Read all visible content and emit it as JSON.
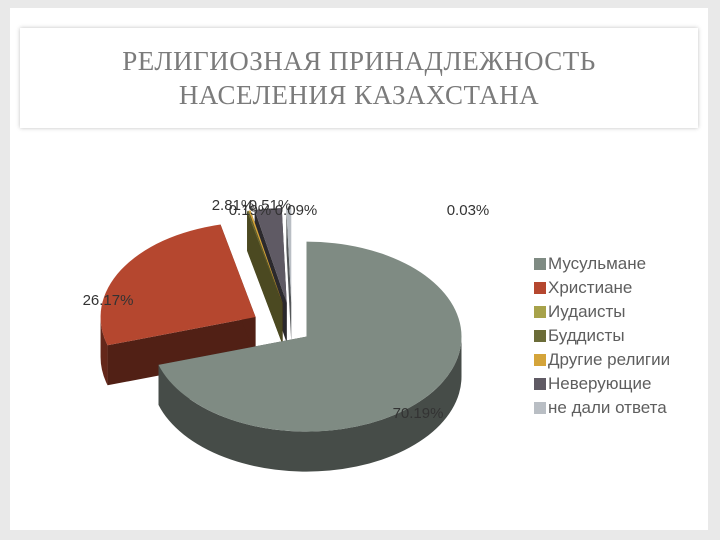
{
  "title": {
    "line1": "РЕЛИГИОЗНАЯ ПРИНАДЛЕЖНОСТЬ",
    "line2": "НАСЕЛЕНИЯ КАЗАХСТАНА"
  },
  "chart_data": {
    "type": "pie",
    "title": "РЕЛИГИОЗНАЯ ПРИНАДЛЕЖНОСТЬ НАСЕЛЕНИЯ КАЗАХСТАНА",
    "legend_position": "right",
    "three_d": true,
    "exploded": true,
    "slices": [
      {
        "name": "Мусульмане",
        "value": 70.19,
        "label": "70.19%",
        "color": "#7f8b83"
      },
      {
        "name": "Христиане",
        "value": 26.17,
        "label": "26.17%",
        "color": "#b5472f"
      },
      {
        "name": "Иудаисты",
        "value": 0.03,
        "label": "0.03%",
        "color": "#a7a24a"
      },
      {
        "name": "Буддисты",
        "value": 0.09,
        "label": "0.09%",
        "color": "#6b6c38"
      },
      {
        "name": "Другие религии",
        "value": 0.19,
        "label": "0.19%",
        "color": "#d4a43a"
      },
      {
        "name": "Неверующие",
        "value": 2.81,
        "label": "2.81%",
        "color": "#5f5a64"
      },
      {
        "name": "не дали ответа",
        "value": 0.51,
        "label": "0.51%",
        "color": "#b9bec4"
      }
    ]
  }
}
